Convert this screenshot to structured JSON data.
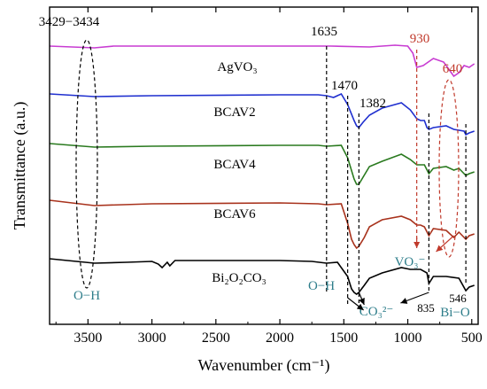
{
  "chart_data": {
    "type": "line",
    "xlabel": "Wavenumber (cm⁻¹)",
    "ylabel": "Transmittance (a.u.)",
    "xlim": [
      3800,
      450
    ],
    "x_ticks": [
      3500,
      3000,
      2500,
      2000,
      1500,
      1000,
      500
    ],
    "colors": {
      "AgVO3": "#c83cd2",
      "BCAV2": "#1f2fcf",
      "BCAV4": "#2a7a1f",
      "BCAV6": "#a8321c",
      "Bi2O2CO3": "#000000",
      "teal": "#2d7d8a",
      "red": "#c0392b"
    },
    "series": [
      {
        "name": "AgVO3",
        "label": "AgVO₃",
        "offset": 1,
        "points": [
          [
            3800,
            0
          ],
          [
            3450,
            -2
          ],
          [
            3300,
            0
          ],
          [
            2000,
            0
          ],
          [
            1600,
            0
          ],
          [
            1300,
            -1
          ],
          [
            1100,
            1
          ],
          [
            1000,
            0
          ],
          [
            960,
            -8
          ],
          [
            930,
            -24
          ],
          [
            880,
            -22
          ],
          [
            800,
            -14
          ],
          [
            720,
            -18
          ],
          [
            680,
            -26
          ],
          [
            640,
            -34
          ],
          [
            600,
            -30
          ],
          [
            560,
            -22
          ],
          [
            520,
            -24
          ],
          [
            480,
            -20
          ]
        ]
      },
      {
        "name": "BCAV2",
        "label": "BCAV2",
        "offset": 2,
        "points": [
          [
            3800,
            0
          ],
          [
            3450,
            -3
          ],
          [
            3000,
            -2
          ],
          [
            2000,
            -1
          ],
          [
            1700,
            -1
          ],
          [
            1635,
            -2
          ],
          [
            1580,
            -4
          ],
          [
            1520,
            0
          ],
          [
            1470,
            -12
          ],
          [
            1420,
            -30
          ],
          [
            1400,
            -36
          ],
          [
            1382,
            -38
          ],
          [
            1350,
            -32
          ],
          [
            1300,
            -24
          ],
          [
            1200,
            -16
          ],
          [
            1050,
            -10
          ],
          [
            980,
            -18
          ],
          [
            930,
            -28
          ],
          [
            900,
            -30
          ],
          [
            870,
            -30
          ],
          [
            850,
            -38
          ],
          [
            835,
            -40
          ],
          [
            800,
            -38
          ],
          [
            700,
            -36
          ],
          [
            640,
            -40
          ],
          [
            560,
            -42
          ],
          [
            546,
            -46
          ],
          [
            520,
            -44
          ],
          [
            480,
            -42
          ]
        ]
      },
      {
        "name": "BCAV4",
        "label": "BCAV4",
        "offset": 3,
        "points": [
          [
            3800,
            0
          ],
          [
            3450,
            -4
          ],
          [
            3000,
            -3
          ],
          [
            2000,
            -2
          ],
          [
            1700,
            -2
          ],
          [
            1635,
            -3
          ],
          [
            1520,
            -2
          ],
          [
            1470,
            -16
          ],
          [
            1420,
            -40
          ],
          [
            1400,
            -46
          ],
          [
            1382,
            -46
          ],
          [
            1350,
            -38
          ],
          [
            1300,
            -26
          ],
          [
            1200,
            -20
          ],
          [
            1050,
            -12
          ],
          [
            980,
            -18
          ],
          [
            930,
            -24
          ],
          [
            900,
            -24
          ],
          [
            870,
            -24
          ],
          [
            835,
            -34
          ],
          [
            800,
            -28
          ],
          [
            700,
            -26
          ],
          [
            640,
            -30
          ],
          [
            600,
            -28
          ],
          [
            546,
            -36
          ],
          [
            520,
            -34
          ],
          [
            480,
            -32
          ]
        ]
      },
      {
        "name": "BCAV6",
        "label": "BCAV6",
        "offset": 4,
        "points": [
          [
            3800,
            0
          ],
          [
            3450,
            -6
          ],
          [
            3000,
            -4
          ],
          [
            2000,
            -3
          ],
          [
            1700,
            -4
          ],
          [
            1635,
            -5
          ],
          [
            1520,
            -4
          ],
          [
            1470,
            -26
          ],
          [
            1440,
            -44
          ],
          [
            1420,
            -50
          ],
          [
            1400,
            -54
          ],
          [
            1382,
            -52
          ],
          [
            1340,
            -42
          ],
          [
            1300,
            -30
          ],
          [
            1200,
            -22
          ],
          [
            1050,
            -18
          ],
          [
            980,
            -22
          ],
          [
            930,
            -28
          ],
          [
            900,
            -28
          ],
          [
            870,
            -30
          ],
          [
            835,
            -40
          ],
          [
            800,
            -32
          ],
          [
            700,
            -34
          ],
          [
            640,
            -42
          ],
          [
            600,
            -36
          ],
          [
            546,
            -44
          ],
          [
            520,
            -40
          ],
          [
            480,
            -38
          ]
        ]
      },
      {
        "name": "Bi2O2CO3",
        "label": "Bi₂O₂CO₃",
        "offset": 5,
        "points": [
          [
            3800,
            0
          ],
          [
            3450,
            -5
          ],
          [
            3200,
            -4
          ],
          [
            3000,
            -3
          ],
          [
            2950,
            -6
          ],
          [
            2920,
            -10
          ],
          [
            2880,
            -4
          ],
          [
            2860,
            -8
          ],
          [
            2820,
            -2
          ],
          [
            2000,
            -2
          ],
          [
            1750,
            -3
          ],
          [
            1635,
            -5
          ],
          [
            1550,
            -4
          ],
          [
            1470,
            -20
          ],
          [
            1440,
            -34
          ],
          [
            1420,
            -38
          ],
          [
            1400,
            -40
          ],
          [
            1382,
            -38
          ],
          [
            1340,
            -30
          ],
          [
            1300,
            -22
          ],
          [
            1200,
            -16
          ],
          [
            1050,
            -10
          ],
          [
            980,
            -12
          ],
          [
            900,
            -12
          ],
          [
            850,
            -16
          ],
          [
            835,
            -28
          ],
          [
            800,
            -20
          ],
          [
            700,
            -20
          ],
          [
            600,
            -22
          ],
          [
            546,
            -36
          ],
          [
            520,
            -32
          ],
          [
            480,
            -30
          ]
        ]
      }
    ],
    "annotations": {
      "oh_range": "3429−3434",
      "peak_1635": "1635",
      "peak_1470": "1470",
      "peak_1382": "1382",
      "peak_930": "930",
      "peak_640": "640",
      "oh_left": "O−H",
      "oh_mid": "O−H",
      "vo3": "VO₃⁻",
      "co3": "CO₃²⁻",
      "peak_835": "835",
      "peak_546": "546",
      "bio": "Bi−O"
    }
  }
}
